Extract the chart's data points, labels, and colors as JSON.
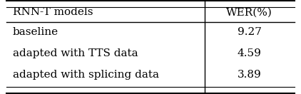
{
  "col_headers": [
    "RNN-T models",
    "WER(%)"
  ],
  "rows": [
    [
      "baseline",
      "9.27"
    ],
    [
      "adapted with TTS data",
      "4.59"
    ],
    [
      "adapted with splicing data",
      "3.89"
    ]
  ],
  "background_color": "#ffffff",
  "text_color": "#000000",
  "font_size": 11,
  "header_font_size": 11,
  "col_split": 0.68,
  "fig_width": 4.22,
  "fig_height": 1.32,
  "dpi": 100
}
